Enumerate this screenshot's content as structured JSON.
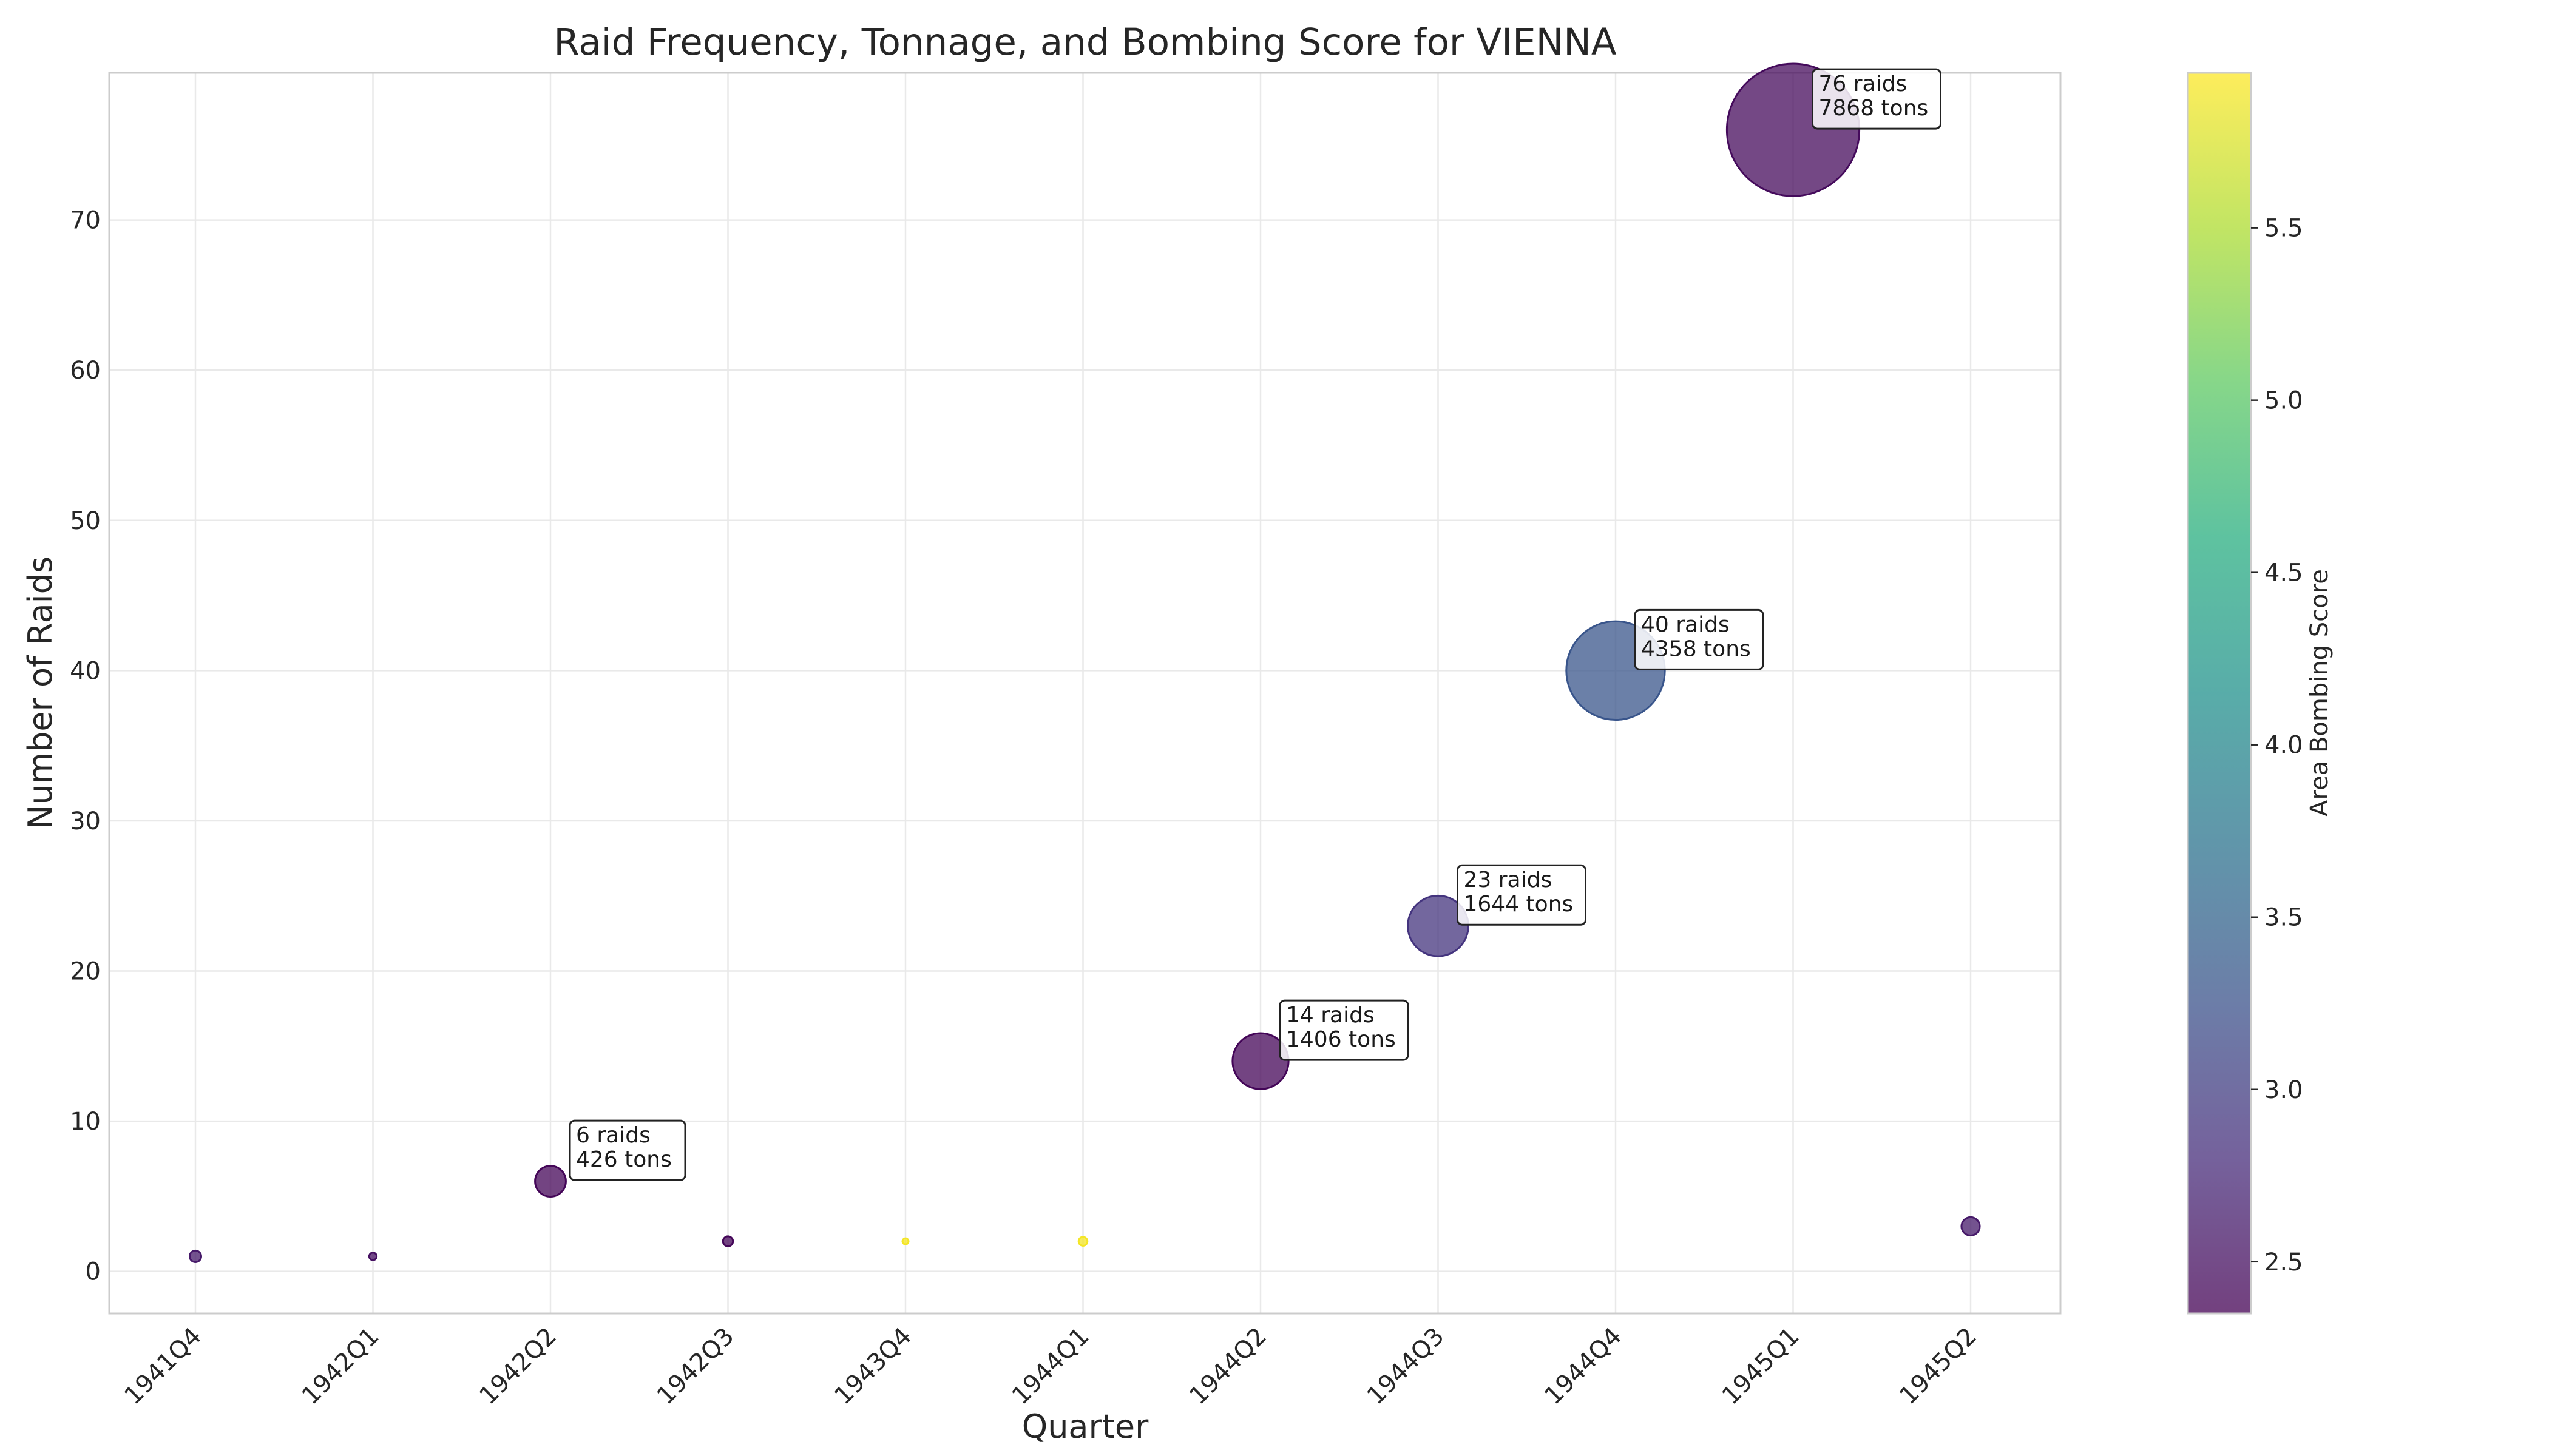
{
  "chart_data": {
    "type": "scatter",
    "title": "Raid Frequency, Tonnage, and Bombing Score for VIENNA",
    "xlabel": "Quarter",
    "ylabel": "Number of Raids",
    "ylim": [
      -2.8,
      79.8
    ],
    "y_ticks": [
      0,
      10,
      20,
      30,
      40,
      50,
      60,
      70
    ],
    "grid": true,
    "categories": [
      "1941Q4",
      "1942Q1",
      "1942Q2",
      "1942Q3",
      "1943Q4",
      "1944Q1",
      "1944Q2",
      "1944Q3",
      "1944Q4",
      "1945Q1",
      "1945Q2"
    ],
    "points": [
      {
        "quarter": "1941Q4",
        "raids": 1,
        "tons": 60,
        "score": 2.6
      },
      {
        "quarter": "1942Q1",
        "raids": 1,
        "tons": 25,
        "score": 2.5
      },
      {
        "quarter": "1942Q2",
        "raids": 6,
        "tons": 426,
        "score": 2.4
      },
      {
        "quarter": "1942Q3",
        "raids": 2,
        "tons": 45,
        "score": 2.4
      },
      {
        "quarter": "1943Q4",
        "raids": 2,
        "tons": 10,
        "score": 5.9
      },
      {
        "quarter": "1944Q1",
        "raids": 2,
        "tons": 35,
        "score": 5.9
      },
      {
        "quarter": "1944Q2",
        "raids": 14,
        "tons": 1406,
        "score": 2.4
      },
      {
        "quarter": "1944Q3",
        "raids": 23,
        "tons": 1644,
        "score": 2.9
      },
      {
        "quarter": "1944Q4",
        "raids": 40,
        "tons": 4358,
        "score": 3.3
      },
      {
        "quarter": "1945Q1",
        "raids": 76,
        "tons": 7868,
        "score": 2.45
      },
      {
        "quarter": "1945Q2",
        "raids": 3,
        "tons": 150,
        "score": 2.6
      }
    ],
    "annotations": [
      {
        "quarter": "1942Q2",
        "line1": "6 raids",
        "line2": "426 tons"
      },
      {
        "quarter": "1944Q2",
        "line1": "14 raids",
        "line2": "1406 tons"
      },
      {
        "quarter": "1944Q3",
        "line1": "23 raids",
        "line2": "1644 tons"
      },
      {
        "quarter": "1944Q4",
        "line1": "40 raids",
        "line2": "4358 tons"
      },
      {
        "quarter": "1945Q1",
        "line1": "76 raids",
        "line2": "7868 tons"
      }
    ],
    "colorbar": {
      "label": "Area Bombing Score",
      "colormap": "viridis",
      "range": [
        2.35,
        5.95
      ],
      "ticks": [
        "2.5",
        "3.0",
        "3.5",
        "4.0",
        "4.5",
        "5.0",
        "5.5"
      ]
    }
  }
}
